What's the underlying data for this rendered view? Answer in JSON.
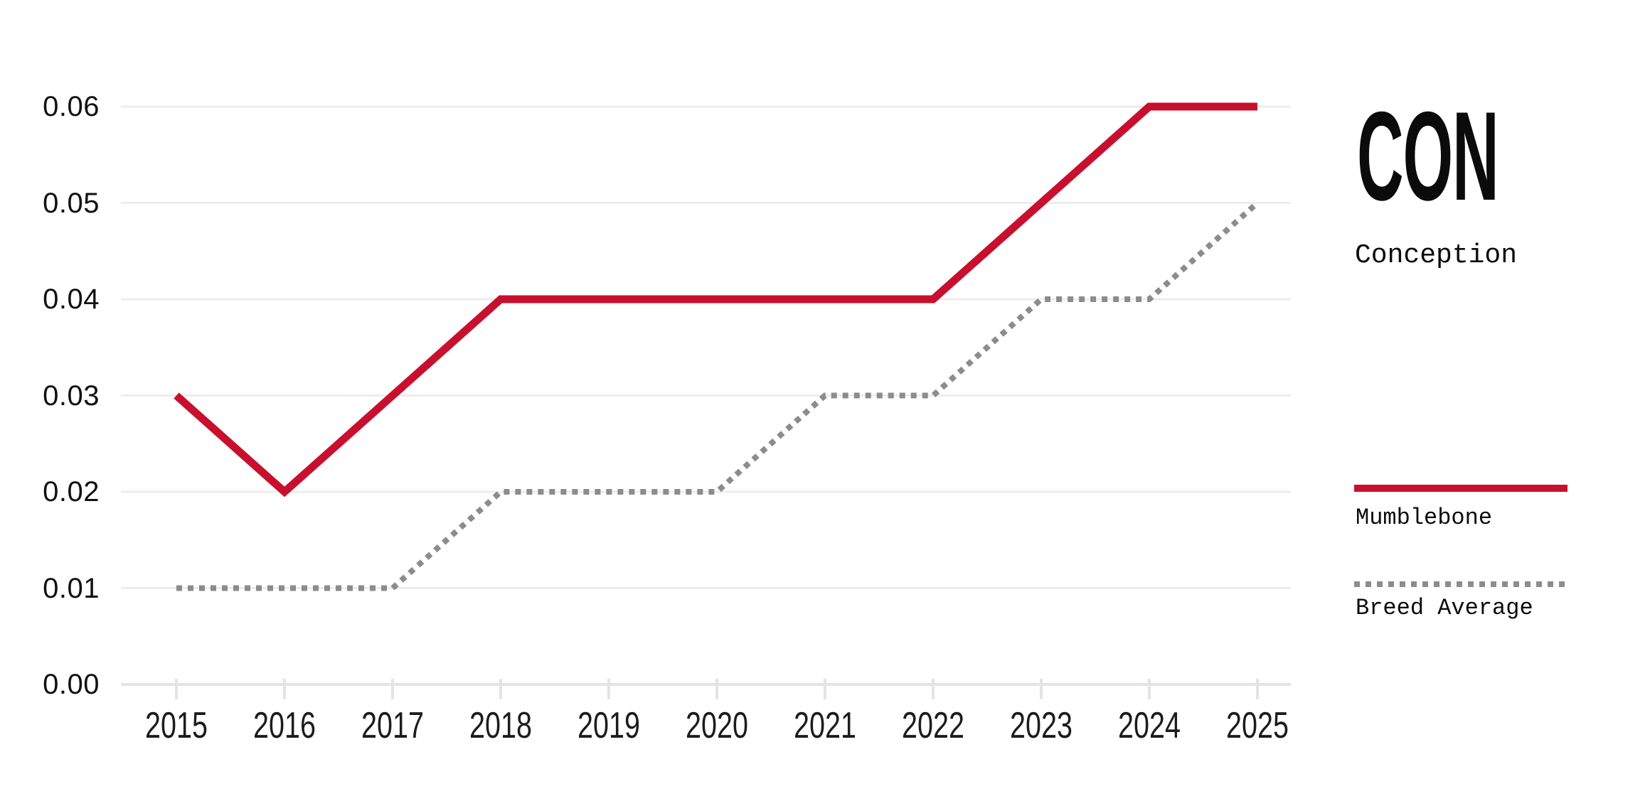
{
  "title_block": {
    "title": "CON",
    "subtitle": "Conception"
  },
  "legend": {
    "position": "right",
    "items": [
      {
        "label": "Mumblebone",
        "swatch": "solid-line",
        "color": "#C8102E"
      },
      {
        "label": "Breed Average",
        "swatch": "dotted-line",
        "color": "#8C8C8C"
      }
    ]
  },
  "styles": {
    "background": "#FFFFFF",
    "grid_color": "#EDEDF0",
    "axis_color": "#E3E3E8",
    "ylabel_color": "#111111",
    "xlabel_color": "#1C1C1C",
    "accent_red": "#C8102E",
    "accent_gray": "#8C8C8C"
  },
  "chart_data": {
    "type": "line",
    "title": "CON",
    "subtitle": "Conception",
    "categories": [
      "2015",
      "2016",
      "2017",
      "2018",
      "2019",
      "2020",
      "2021",
      "2022",
      "2023",
      "2024",
      "2025"
    ],
    "series": [
      {
        "name": "Mumblebone",
        "line_style": "solid",
        "color": "#C8102E",
        "values": [
          0.03,
          0.02,
          0.03,
          0.04,
          0.04,
          0.04,
          0.04,
          0.04,
          0.05,
          0.06,
          0.06
        ]
      },
      {
        "name": "Breed Average",
        "line_style": "dotted",
        "color": "#8C8C8C",
        "values": [
          0.01,
          0.01,
          0.01,
          0.02,
          0.02,
          0.02,
          0.03,
          0.03,
          0.04,
          0.04,
          0.05
        ]
      }
    ],
    "yticks": [
      {
        "value": 0.0,
        "label": "0.00"
      },
      {
        "value": 0.01,
        "label": "0.01"
      },
      {
        "value": 0.02,
        "label": "0.02"
      },
      {
        "value": 0.03,
        "label": "0.03"
      },
      {
        "value": 0.04,
        "label": "0.04"
      },
      {
        "value": 0.05,
        "label": "0.05"
      },
      {
        "value": 0.06,
        "label": "0.06"
      }
    ],
    "ylim": [
      0,
      0.06
    ],
    "xlabel": "",
    "ylabel": "",
    "grid": true,
    "legend_position": "right"
  }
}
